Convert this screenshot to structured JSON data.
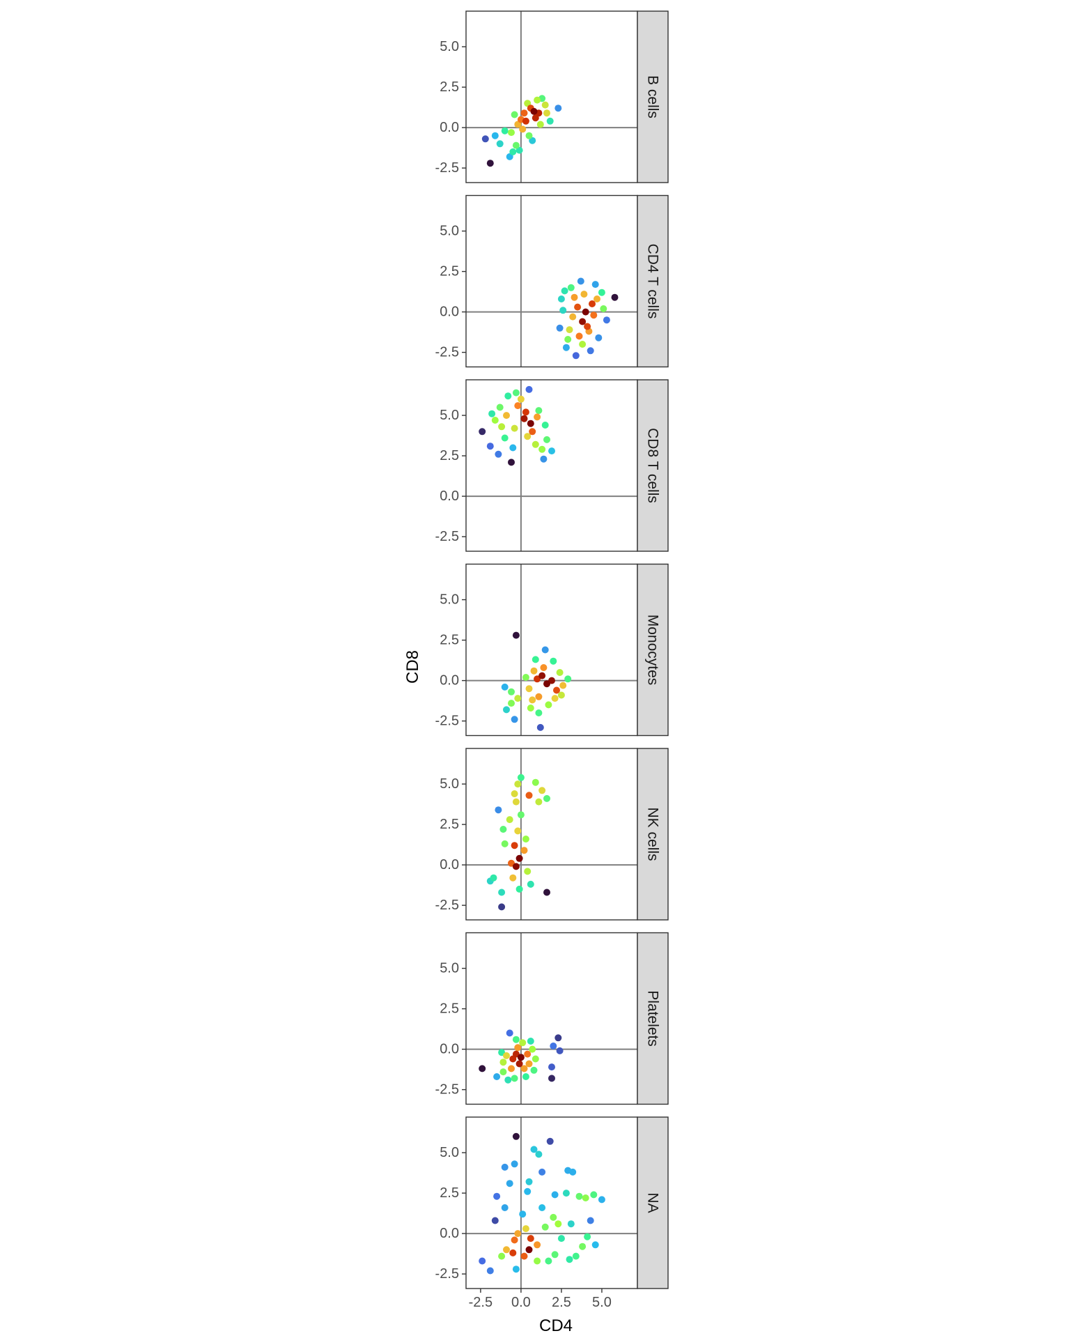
{
  "chart_data": {
    "type": "scatter",
    "xlabel": "CD4",
    "ylabel": "CD8",
    "xlim": [
      -3.4,
      7.2
    ],
    "ylim": [
      -3.4,
      7.2
    ],
    "x_ticks": [
      "-2.5",
      "0.0",
      "2.5",
      "5.0"
    ],
    "y_ticks": [
      "-2.5",
      "0.0",
      "2.5",
      "5.0"
    ],
    "reference_lines": {
      "x": 0,
      "y": 0
    },
    "grid": false,
    "color_encoding": "point density (dark purple = low, blue/green/yellow = medium, dark red = high)",
    "panels": [
      {
        "name": "B cells",
        "points": [
          [
            -2.2,
            -0.7
          ],
          [
            -1.6,
            -0.5
          ],
          [
            -1.3,
            -1.0
          ],
          [
            -1.9,
            -2.2
          ],
          [
            -0.7,
            -1.8
          ],
          [
            -0.3,
            -1.1
          ],
          [
            -0.6,
            -0.3
          ],
          [
            -0.2,
            0.2
          ],
          [
            0.1,
            -0.1
          ],
          [
            0.3,
            0.4
          ],
          [
            0.2,
            0.9
          ],
          [
            0.6,
            1.2
          ],
          [
            1.0,
            1.7
          ],
          [
            1.3,
            1.8
          ],
          [
            0.9,
            0.6
          ],
          [
            1.2,
            0.2
          ],
          [
            1.6,
            0.9
          ],
          [
            2.3,
            1.2
          ],
          [
            0.5,
            -0.5
          ],
          [
            -0.4,
            0.8
          ],
          [
            0.7,
            -0.8
          ],
          [
            -0.1,
            -1.4
          ],
          [
            0.4,
            1.5
          ],
          [
            1.8,
            0.4
          ],
          [
            -1.0,
            -0.2
          ],
          [
            0.0,
            0.5
          ],
          [
            0.8,
            1.0
          ],
          [
            1.5,
            1.4
          ],
          [
            -0.5,
            -1.5
          ],
          [
            1.1,
            0.9
          ]
        ]
      },
      {
        "name": "CD4 T cells",
        "points": [
          [
            3.8,
            -0.6
          ],
          [
            3.5,
            0.3
          ],
          [
            4.2,
            -1.2
          ],
          [
            2.5,
            0.8
          ],
          [
            5.8,
            0.9
          ],
          [
            2.8,
            -2.2
          ],
          [
            3.4,
            -2.7
          ],
          [
            4.3,
            -2.4
          ],
          [
            3.1,
            1.5
          ],
          [
            4.6,
            1.7
          ],
          [
            5.1,
            0.2
          ],
          [
            2.4,
            -1.0
          ],
          [
            3.9,
            1.1
          ],
          [
            4.8,
            -1.6
          ],
          [
            3.2,
            -0.3
          ],
          [
            4.4,
            0.5
          ],
          [
            2.9,
            -1.7
          ],
          [
            3.6,
            -1.5
          ],
          [
            4.0,
            0.0
          ],
          [
            5.3,
            -0.5
          ],
          [
            3.7,
            1.9
          ],
          [
            2.6,
            0.1
          ],
          [
            4.1,
            -0.9
          ],
          [
            3.3,
            0.9
          ],
          [
            4.7,
            0.8
          ],
          [
            3.0,
            -1.1
          ],
          [
            4.5,
            -0.2
          ],
          [
            3.8,
            -2.0
          ],
          [
            2.7,
            1.3
          ],
          [
            5.0,
            1.2
          ]
        ]
      },
      {
        "name": "CD8 T cells",
        "points": [
          [
            -0.4,
            4.2
          ],
          [
            0.2,
            4.8
          ],
          [
            -1.3,
            5.5
          ],
          [
            -0.8,
            6.2
          ],
          [
            0.5,
            6.6
          ],
          [
            1.1,
            5.3
          ],
          [
            1.5,
            4.4
          ],
          [
            -1.9,
            3.1
          ],
          [
            -1.4,
            2.6
          ],
          [
            -0.6,
            2.1
          ],
          [
            1.4,
            2.3
          ],
          [
            1.9,
            2.8
          ],
          [
            1.6,
            3.5
          ],
          [
            -2.4,
            4.0
          ],
          [
            -1.6,
            4.7
          ],
          [
            0.7,
            4.0
          ],
          [
            -0.2,
            5.6
          ],
          [
            0.9,
            3.2
          ],
          [
            -1.0,
            3.6
          ],
          [
            0.3,
            5.2
          ],
          [
            -0.5,
            3.0
          ],
          [
            1.3,
            2.9
          ],
          [
            -1.8,
            5.1
          ],
          [
            0.0,
            6.0
          ],
          [
            -1.2,
            4.3
          ],
          [
            0.6,
            4.5
          ],
          [
            -0.9,
            5.0
          ],
          [
            0.4,
            3.7
          ],
          [
            -0.3,
            6.4
          ],
          [
            1.0,
            4.9
          ]
        ]
      },
      {
        "name": "Monocytes",
        "points": [
          [
            1.6,
            -0.2
          ],
          [
            1.9,
            0.0
          ],
          [
            1.3,
            0.3
          ],
          [
            2.2,
            -0.6
          ],
          [
            0.9,
            1.3
          ],
          [
            1.5,
            1.9
          ],
          [
            -0.3,
            2.8
          ],
          [
            -0.6,
            -0.7
          ],
          [
            -0.2,
            -1.1
          ],
          [
            -0.4,
            -2.4
          ],
          [
            -0.9,
            -1.8
          ],
          [
            -0.6,
            -1.4
          ],
          [
            0.6,
            -1.7
          ],
          [
            1.1,
            -2.0
          ],
          [
            1.2,
            -2.9
          ],
          [
            2.5,
            -0.9
          ],
          [
            2.9,
            0.1
          ],
          [
            0.8,
            0.6
          ],
          [
            2.0,
            1.2
          ],
          [
            0.3,
            0.2
          ],
          [
            1.1,
            -1.0
          ],
          [
            2.4,
            0.5
          ],
          [
            0.5,
            -0.5
          ],
          [
            1.7,
            -1.5
          ],
          [
            1.4,
            0.8
          ],
          [
            2.6,
            -0.3
          ],
          [
            0.7,
            -1.2
          ],
          [
            -1.0,
            -0.4
          ],
          [
            1.0,
            0.1
          ],
          [
            2.1,
            -1.1
          ]
        ]
      },
      {
        "name": "NK cells",
        "points": [
          [
            -0.3,
            -0.1
          ],
          [
            -0.1,
            0.4
          ],
          [
            -0.4,
            1.2
          ],
          [
            -0.2,
            2.1
          ],
          [
            0.0,
            3.1
          ],
          [
            -0.3,
            3.9
          ],
          [
            -0.4,
            4.4
          ],
          [
            -0.2,
            5.0
          ],
          [
            0.0,
            5.4
          ],
          [
            0.9,
            5.1
          ],
          [
            1.3,
            4.6
          ],
          [
            1.6,
            4.1
          ],
          [
            1.1,
            3.9
          ],
          [
            0.5,
            4.3
          ],
          [
            -1.4,
            3.4
          ],
          [
            -1.1,
            2.2
          ],
          [
            -1.0,
            1.3
          ],
          [
            -1.7,
            -0.8
          ],
          [
            -1.9,
            -1.0
          ],
          [
            -1.2,
            -1.7
          ],
          [
            -1.2,
            -2.6
          ],
          [
            -0.1,
            -1.5
          ],
          [
            0.6,
            -1.2
          ],
          [
            1.6,
            -1.7
          ],
          [
            0.4,
            -0.4
          ],
          [
            -0.6,
            0.1
          ],
          [
            0.3,
            1.6
          ],
          [
            -0.7,
            2.8
          ],
          [
            0.2,
            0.9
          ],
          [
            -0.5,
            -0.8
          ]
        ]
      },
      {
        "name": "Platelets",
        "points": [
          [
            -0.5,
            -0.6
          ],
          [
            -0.3,
            -0.3
          ],
          [
            0.0,
            -0.5
          ],
          [
            -0.6,
            -1.2
          ],
          [
            -1.1,
            -1.4
          ],
          [
            -1.1,
            -0.8
          ],
          [
            -0.8,
            -1.9
          ],
          [
            -0.4,
            -1.8
          ],
          [
            0.3,
            -1.7
          ],
          [
            0.8,
            -1.3
          ],
          [
            -2.4,
            -1.2
          ],
          [
            -1.2,
            -0.2
          ],
          [
            -0.7,
            1.0
          ],
          [
            -0.3,
            0.6
          ],
          [
            0.1,
            0.4
          ],
          [
            0.4,
            -0.3
          ],
          [
            0.7,
            0.0
          ],
          [
            2.3,
            0.7
          ],
          [
            2.0,
            0.2
          ],
          [
            2.4,
            -0.1
          ],
          [
            1.9,
            -1.1
          ],
          [
            1.9,
            -1.8
          ],
          [
            0.5,
            -0.9
          ],
          [
            -0.9,
            -0.4
          ],
          [
            0.2,
            -1.2
          ],
          [
            -0.2,
            0.1
          ],
          [
            0.6,
            0.5
          ],
          [
            -1.5,
            -1.7
          ],
          [
            -0.1,
            -0.9
          ],
          [
            0.9,
            -0.6
          ]
        ]
      },
      {
        "name": "NA",
        "points": [
          [
            -0.2,
            0.0
          ],
          [
            -0.4,
            -0.4
          ],
          [
            0.3,
            0.3
          ],
          [
            0.6,
            -0.3
          ],
          [
            -0.9,
            -1.0
          ],
          [
            -1.2,
            -1.4
          ],
          [
            -2.4,
            -1.7
          ],
          [
            -1.9,
            -2.3
          ],
          [
            -0.3,
            -2.2
          ],
          [
            0.2,
            -1.4
          ],
          [
            1.0,
            -1.7
          ],
          [
            1.7,
            -1.7
          ],
          [
            2.1,
            -1.3
          ],
          [
            3.0,
            -1.6
          ],
          [
            3.4,
            -1.4
          ],
          [
            4.6,
            -0.7
          ],
          [
            4.1,
            -0.2
          ],
          [
            3.1,
            0.6
          ],
          [
            2.3,
            0.6
          ],
          [
            2.1,
            2.4
          ],
          [
            2.8,
            2.5
          ],
          [
            3.6,
            2.3
          ],
          [
            4.0,
            2.2
          ],
          [
            4.5,
            2.4
          ],
          [
            5.0,
            2.1
          ],
          [
            2.9,
            3.9
          ],
          [
            3.2,
            3.8
          ],
          [
            1.3,
            3.8
          ],
          [
            0.8,
            5.2
          ],
          [
            -0.3,
            6.0
          ],
          [
            -1.0,
            4.1
          ],
          [
            -0.4,
            4.3
          ],
          [
            0.5,
            3.2
          ],
          [
            1.8,
            5.7
          ],
          [
            1.1,
            4.9
          ],
          [
            -1.5,
            2.3
          ],
          [
            -1.0,
            1.6
          ],
          [
            -1.6,
            0.8
          ],
          [
            0.1,
            1.2
          ],
          [
            1.5,
            0.4
          ],
          [
            1.0,
            -0.7
          ],
          [
            2.5,
            -0.3
          ],
          [
            3.8,
            -0.8
          ],
          [
            4.3,
            0.8
          ],
          [
            -0.7,
            3.1
          ],
          [
            0.4,
            2.6
          ],
          [
            -0.5,
            -1.2
          ],
          [
            0.5,
            -1.0
          ],
          [
            1.3,
            1.6
          ],
          [
            2.0,
            1.0
          ]
        ]
      }
    ]
  }
}
